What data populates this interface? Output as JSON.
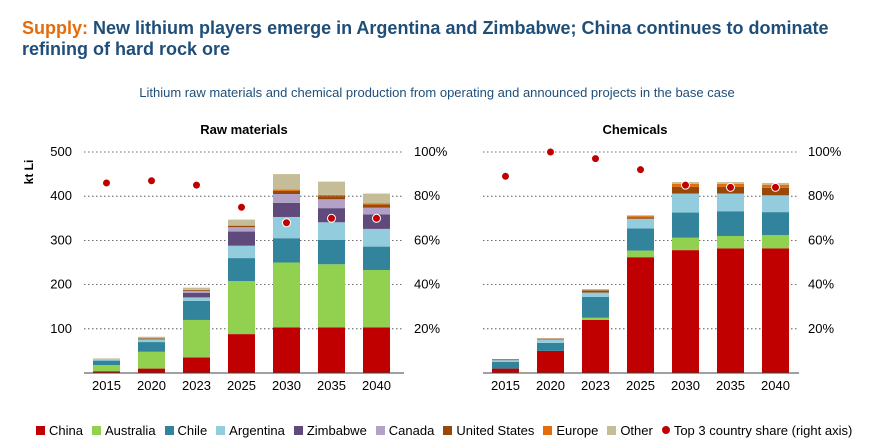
{
  "title": {
    "keyword": "Supply:",
    "text": "New lithium players emerge in Argentina and Zimbabwe; China continues to dominate refining of hard rock ore"
  },
  "subtitle": "Lithium raw materials and chemical production from operating and announced projects in the base case",
  "chart_data": [
    {
      "type": "bar",
      "stacked": true,
      "title": "Raw materials",
      "ylabel": "kt Li",
      "ylim": [
        0,
        500
      ],
      "yticks": [
        100,
        200,
        300,
        400,
        500
      ],
      "y2lim": [
        0,
        100
      ],
      "y2ticks": [
        "20%",
        "40%",
        "60%",
        "80%",
        "100%"
      ],
      "categories": [
        "2015",
        "2020",
        "2023",
        "2025",
        "2030",
        "2035",
        "2040"
      ],
      "series": [
        {
          "name": "China",
          "values": [
            4,
            10,
            35,
            88,
            103,
            103,
            103
          ]
        },
        {
          "name": "Australia",
          "values": [
            14,
            38,
            85,
            120,
            147,
            143,
            130
          ]
        },
        {
          "name": "Chile",
          "values": [
            10,
            22,
            43,
            52,
            55,
            55,
            53
          ]
        },
        {
          "name": "Argentina",
          "values": [
            2,
            6,
            8,
            28,
            48,
            40,
            40
          ]
        },
        {
          "name": "Zimbabwe",
          "values": [
            0,
            0,
            10,
            32,
            32,
            32,
            33
          ]
        },
        {
          "name": "Canada",
          "values": [
            0,
            0,
            5,
            10,
            20,
            20,
            15
          ]
        },
        {
          "name": "United States",
          "values": [
            0,
            2,
            2,
            3,
            7,
            7,
            7
          ]
        },
        {
          "name": "Europe",
          "values": [
            0,
            0,
            0,
            1,
            3,
            3,
            3
          ]
        },
        {
          "name": "Other",
          "values": [
            3,
            4,
            5,
            13,
            35,
            30,
            22
          ]
        }
      ],
      "top3_share": [
        86,
        87,
        85,
        75,
        68,
        70,
        70
      ]
    },
    {
      "type": "bar",
      "stacked": true,
      "title": "Chemicals",
      "ylabel": "",
      "ylim": [
        0,
        500
      ],
      "y2lim": [
        0,
        100
      ],
      "y2ticks": [
        "20%",
        "40%",
        "60%",
        "80%",
        "100%"
      ],
      "categories": [
        "2015",
        "2020",
        "2023",
        "2025",
        "2030",
        "2035",
        "2040"
      ],
      "series": [
        {
          "name": "China",
          "values": [
            10,
            50,
            120,
            262,
            278,
            282,
            282
          ]
        },
        {
          "name": "Australia",
          "values": [
            0,
            0,
            5,
            15,
            28,
            28,
            30
          ]
        },
        {
          "name": "Chile",
          "values": [
            15,
            18,
            47,
            50,
            57,
            56,
            52
          ]
        },
        {
          "name": "Argentina",
          "values": [
            4,
            8,
            10,
            22,
            43,
            40,
            38
          ]
        },
        {
          "name": "Zimbabwe",
          "values": [
            0,
            0,
            0,
            0,
            0,
            0,
            0
          ]
        },
        {
          "name": "Canada",
          "values": [
            0,
            0,
            0,
            0,
            0,
            0,
            0
          ]
        },
        {
          "name": "United States",
          "values": [
            2,
            2,
            5,
            3,
            15,
            15,
            17
          ]
        },
        {
          "name": "Europe",
          "values": [
            0,
            0,
            0,
            3,
            7,
            7,
            7
          ]
        },
        {
          "name": "Other",
          "values": [
            0,
            0,
            3,
            2,
            4,
            4,
            4
          ]
        }
      ],
      "top3_share": [
        89,
        100,
        97,
        92,
        85,
        84,
        84
      ]
    }
  ],
  "legend": [
    {
      "label": "China",
      "color": "#c00000",
      "kind": "square"
    },
    {
      "label": "Australia",
      "color": "#92d050",
      "kind": "square"
    },
    {
      "label": "Chile",
      "color": "#31849b",
      "kind": "square"
    },
    {
      "label": "Argentina",
      "color": "#93cddd",
      "kind": "square"
    },
    {
      "label": "Zimbabwe",
      "color": "#604a7b",
      "kind": "square"
    },
    {
      "label": "Canada",
      "color": "#b3a2c7",
      "kind": "square"
    },
    {
      "label": "United States",
      "color": "#984807",
      "kind": "square"
    },
    {
      "label": "Europe",
      "color": "#e46c0a",
      "kind": "square"
    },
    {
      "label": "Other",
      "color": "#c4bd97",
      "kind": "square"
    },
    {
      "label": "Top 3 country share (right axis)",
      "color": "#c00000",
      "kind": "dot"
    }
  ]
}
